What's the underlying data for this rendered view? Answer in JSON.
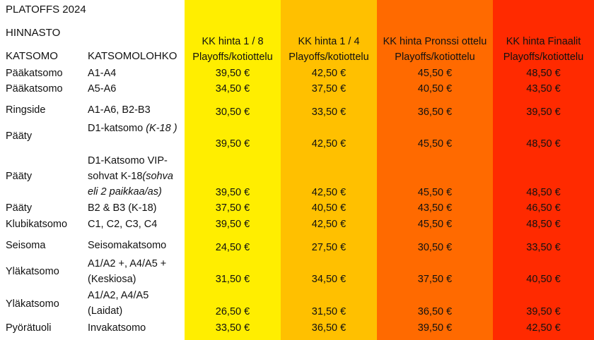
{
  "title": "PLATOFFS 2024",
  "subtitle": "HINNASTO",
  "headers": {
    "katsomo": "KATSOMO",
    "lohko": "KATSOMOLOHKO",
    "price_cols": [
      {
        "line1": "KK hinta 1 / 8",
        "line2": "Playoffs/kotiottelu",
        "color": "#ffee00"
      },
      {
        "line1": "KK hinta 1 / 4",
        "line2": "Playoffs/kotiottelu",
        "color": "#ffc000"
      },
      {
        "line1": "KK hinta Pronssi ottelu",
        "line2": "Playoffs/kotiottelu",
        "color": "#ff6a00"
      },
      {
        "line1": "KK hinta Finaalit",
        "line2": "Playoffs/kotiottelu",
        "color": "#ff2a00"
      }
    ]
  },
  "rows": [
    {
      "katsomo": "Pääkatsomo",
      "lohko": [
        "A1-A4"
      ],
      "note": "",
      "prices": [
        "39,50 €",
        "42,50 €",
        "45,50 €",
        "48,50 €"
      ]
    },
    {
      "katsomo": "Pääkatsomo",
      "lohko": [
        "A5-A6"
      ],
      "note": "",
      "prices": [
        "34,50 €",
        "37,50 €",
        "40,50 €",
        "43,50 €"
      ]
    },
    {
      "katsomo": "Ringside",
      "lohko": [
        "A1-A6, B2-B3"
      ],
      "note": "",
      "prices": [
        "30,50 €",
        "33,50 €",
        "36,50 €",
        "39,50 €"
      ]
    },
    {
      "katsomo": "Pääty",
      "lohko": [
        "D1-katsomo "
      ],
      "note": "(K-18 )",
      "prices": [
        "39,50 €",
        "42,50 €",
        "45,50 €",
        "48,50 €"
      ]
    },
    {
      "katsomo": "Pääty",
      "lohko": [
        "D1-Katsomo VIP-",
        "sohvat K-18"
      ],
      "note": "(sohva eli 2 paikkaa/as)",
      "prices": [
        "39,50 €",
        "42,50 €",
        "45,50 €",
        "48,50 €"
      ]
    },
    {
      "katsomo": "Pääty",
      "lohko": [
        "B2 & B3 (K-18)"
      ],
      "note": "",
      "prices": [
        "37,50 €",
        "40,50 €",
        "43,50 €",
        "46,50 €"
      ]
    },
    {
      "katsomo": "Klubikatsomo",
      "lohko": [
        "C1, C2, C3, C4"
      ],
      "note": "",
      "prices": [
        "39,50 €",
        "42,50 €",
        "45,50 €",
        "48,50 €"
      ]
    },
    {
      "katsomo": "Seisoma",
      "lohko": [
        "Seisomakatsomo"
      ],
      "note": "",
      "prices": [
        "24,50 €",
        "27,50 €",
        "30,50 €",
        "33,50 €"
      ]
    },
    {
      "katsomo": "Yläkatsomo",
      "lohko": [
        "A1/A2 +, A4/A5 +",
        "(Keskiosa)"
      ],
      "note": "",
      "prices": [
        "31,50 €",
        "34,50 €",
        "37,50 €",
        "40,50 €"
      ]
    },
    {
      "katsomo": "Yläkatsomo",
      "lohko": [
        "A1/A2, A4/A5",
        "(Laidat)"
      ],
      "note": "",
      "prices": [
        "26,50 €",
        "31,50 €",
        "36,50 €",
        "39,50 €"
      ]
    },
    {
      "katsomo": "Pyörätuoli",
      "lohko": [
        "Invakatsomo"
      ],
      "note": "",
      "prices": [
        "33,50 €",
        "36,50 €",
        "39,50 €",
        "42,50 €"
      ]
    }
  ]
}
